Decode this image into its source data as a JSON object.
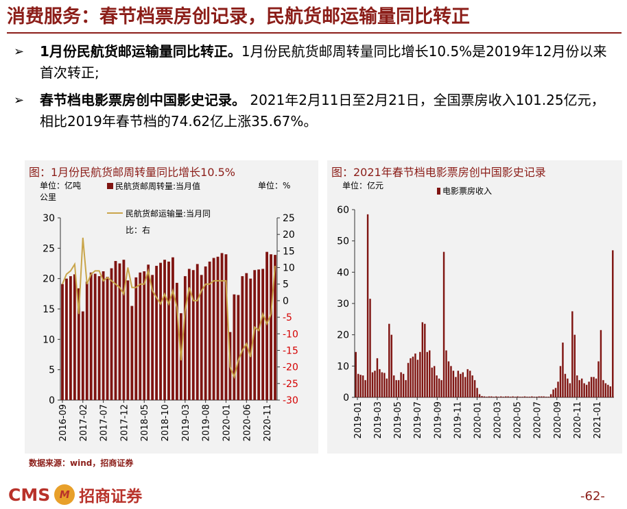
{
  "header": {
    "title": "消费服务：春节档票房创记录，民航货邮运输量同比转正"
  },
  "bullets": [
    {
      "bold": "1月份民航货邮运输量同比转正。",
      "text": "1月份民航货邮周转量同比增长10.5%是2019年12月份以来首次转正;"
    },
    {
      "bold": "春节档电影票房创中国影史记录。",
      "text": "  2021年2月11日至2月21日，全国票房收入101.25亿元，相比2019年春节档的74.62亿上涨35.67%。"
    }
  ],
  "bullet_glyph": "➢",
  "source": "数据来源：wind，招商证券",
  "footer": {
    "brand": "CMS",
    "badge": "M",
    "company": "招商证券",
    "page": "-62-"
  },
  "colors": {
    "bar": "#7f1411",
    "line": "#c9a54a",
    "accent": "#8b1d18",
    "panel": "#f2f2f2"
  },
  "chart_data": [
    {
      "type": "bar+line",
      "title": "图：1月份民航货邮周转量同比增长10.5%",
      "left_unit": "单位：亿吨公里",
      "right_unit": "单位：%",
      "legend": [
        {
          "name": "民航货邮周转量:当月值",
          "kind": "bar"
        },
        {
          "name": "民航货邮运输量:当月同比：右",
          "kind": "line"
        }
      ],
      "ylim": [
        0,
        30
      ],
      "yticks": [
        0,
        5,
        10,
        15,
        20,
        25,
        30
      ],
      "y2lim": [
        -30,
        25
      ],
      "y2ticks": [
        25,
        20,
        15,
        10,
        5,
        0,
        -5,
        -10,
        -15,
        -20,
        -25,
        -30
      ],
      "x_tick_labels": [
        "2016-09",
        "2017-02",
        "2017-07",
        "2017-12",
        "2018-05",
        "2018-10",
        "2019-03",
        "2019-08",
        "2020-01",
        "2020-06",
        "2020-11"
      ],
      "x_tick_start": "2016-09",
      "series": [
        {
          "name": "民航货邮周转量:当月值",
          "kind": "bar",
          "values": [
            19.1,
            20.0,
            20.4,
            20.7,
            18.4,
            14.6,
            19.5,
            21.0,
            20.8,
            20.4,
            21.2,
            20.3,
            21.7,
            22.9,
            22.5,
            23.1,
            19.7,
            15.5,
            20.2,
            21.0,
            21.2,
            22.3,
            20.6,
            22.1,
            22.6,
            23.1,
            22.8,
            23.5,
            19.3,
            14.3,
            20.4,
            21.6,
            21.4,
            22.4,
            20.6,
            22.0,
            22.8,
            23.4,
            23.6,
            24.2,
            24.0,
            11.2,
            17.4,
            17.3,
            20.4,
            20.9,
            20.0,
            21.4,
            21.5,
            21.6,
            24.4,
            24.0,
            23.9
          ]
        },
        {
          "name": "民航货邮运输量:当月同比：右",
          "kind": "line",
          "values": [
            5.0,
            8.0,
            9.0,
            11.0,
            -4.0,
            19.0,
            5.0,
            8.0,
            9.0,
            9.0,
            6.0,
            7.0,
            6.0,
            5.0,
            4.0,
            2.0,
            10.0,
            4.0,
            4.0,
            5.0,
            5.0,
            9.0,
            3.0,
            1.0,
            -1.0,
            2.0,
            -1.0,
            3.0,
            -2.0,
            -18.0,
            -3.0,
            4.0,
            0.0,
            0.0,
            3.0,
            5.0,
            5.0,
            6.0,
            6.0,
            6.0,
            6.0,
            -20.0,
            -23.0,
            -18.0,
            -15.0,
            -13.0,
            -17.0,
            -8.0,
            -9.0,
            -4.0,
            -7.0,
            -4.0,
            10.5
          ]
        }
      ]
    },
    {
      "type": "bar",
      "title": "图：2021年春节档电影票房创中国影史记录",
      "unit": "单位：亿元",
      "legend": [
        {
          "name": "电影票房收入",
          "kind": "bar"
        }
      ],
      "ylim": [
        0,
        60
      ],
      "yticks": [
        0,
        10,
        20,
        30,
        40,
        50,
        60
      ],
      "x_tick_labels": [
        "2019-01",
        "2019-03",
        "2019-05",
        "2019-07",
        "2019-09",
        "2019-11",
        "2020-01",
        "2020-03",
        "2020-05",
        "2020-07",
        "2020-09",
        "2020-11",
        "2021-01"
      ],
      "series": [
        {
          "name": "电影票房收入",
          "values": [
            14.5,
            7.5,
            7.2,
            7.0,
            5.5,
            58.5,
            31.5,
            8.0,
            8.5,
            12.5,
            9.0,
            8.0,
            7.8,
            6.0,
            23.5,
            20.0,
            7.0,
            5.5,
            5.5,
            8.0,
            7.5,
            5.5,
            11.0,
            12.5,
            13.0,
            14.0,
            12.0,
            14.5,
            24.0,
            23.5,
            14.5,
            15.0,
            9.5,
            10.0,
            7.0,
            6.0,
            5.5,
            46.5,
            15.0,
            11.5,
            10.0,
            8.5,
            6.5,
            8.5,
            7.5,
            8.0,
            6.5,
            9.0,
            8.5,
            7.0,
            5.5,
            3.0,
            1.0,
            0.4,
            0.3,
            0.2,
            0.3,
            0.3,
            0.2,
            0.3,
            0.2,
            0.3,
            0.2,
            0.3,
            0.3,
            0.2,
            0.3,
            0.2,
            0.3,
            0.2,
            0.2,
            0.3,
            0.2,
            0.2,
            0.3,
            0.2,
            0.2,
            0.3,
            0.3,
            0.3,
            0.2,
            0.2,
            1.0,
            2.5,
            3.0,
            5.0,
            10.0,
            17.5,
            7.5,
            6.0,
            4.5,
            27.5,
            20.0,
            7.0,
            5.5,
            6.0,
            4.5,
            4.0,
            5.0,
            6.5,
            6.5,
            6.0,
            11.5,
            21.5,
            5.5,
            4.5,
            4.0,
            3.5,
            47.0
          ]
        }
      ]
    }
  ]
}
